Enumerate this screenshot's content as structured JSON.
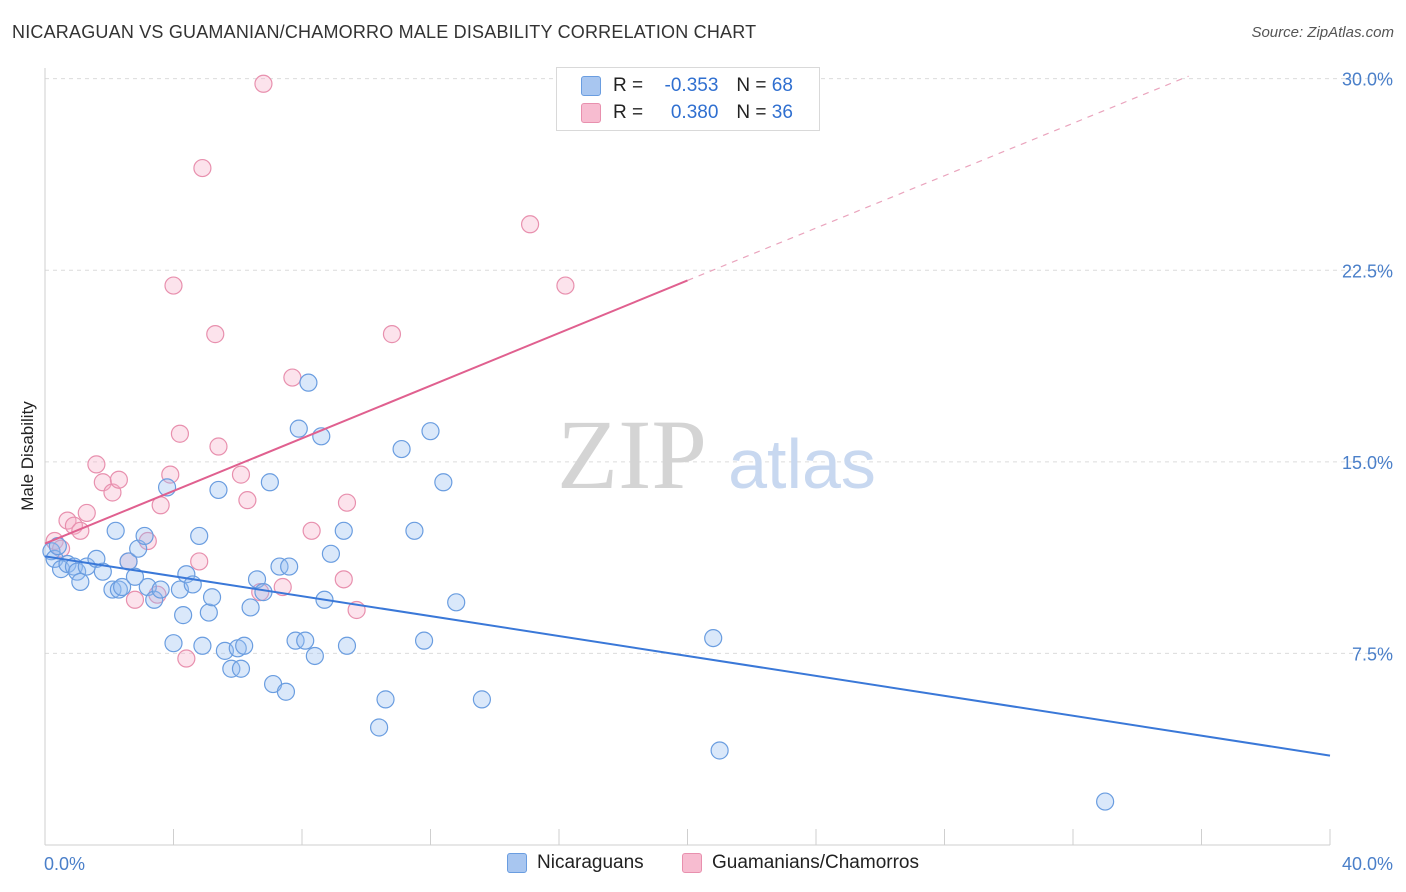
{
  "header": {
    "title": "NICARAGUAN VS GUAMANIAN/CHAMORRO MALE DISABILITY CORRELATION CHART",
    "source": "Source: ZipAtlas.com"
  },
  "watermark": {
    "zip": "ZIP",
    "atlas": "atlas"
  },
  "legend_top": {
    "rows": [
      {
        "r_label": "R =",
        "r_value": "-0.353",
        "n_label": "N =",
        "n_value": "68",
        "color": "#a8c6f0",
        "border": "#6a9de0"
      },
      {
        "r_label": "R =",
        "r_value": "0.380",
        "n_label": "N =",
        "n_value": "36",
        "color": "#f7bcd0",
        "border": "#e890ae"
      }
    ]
  },
  "legend_bottom": {
    "items": [
      {
        "label": "Nicaraguans",
        "color": "#a8c6f0",
        "border": "#6a9de0"
      },
      {
        "label": "Guamanians/Chamorros",
        "color": "#f7bcd0",
        "border": "#e890ae"
      }
    ]
  },
  "chart_data": {
    "type": "scatter",
    "title": "NICARAGUAN VS GUAMANIAN/CHAMORRO MALE DISABILITY CORRELATION CHART",
    "xlabel": "",
    "ylabel": "Male Disability",
    "xlim": [
      0,
      40
    ],
    "ylim": [
      0,
      31
    ],
    "x_tick_labels": [
      "0.0%",
      "40.0%"
    ],
    "y_ticks": [
      7.5,
      15.0,
      22.5,
      30.0
    ],
    "y_tick_labels": [
      "7.5%",
      "15.0%",
      "22.5%",
      "30.0%"
    ],
    "grid": true,
    "legend_position": "top-center",
    "colors": {
      "blue": "#3a78d8",
      "pink": "#e0608f"
    },
    "series": [
      {
        "name": "Nicaraguans",
        "marker_fill": "rgba(150,188,240,0.35)",
        "marker_stroke": "#6a9de0",
        "trend": {
          "x0": 0.0,
          "y0": 11.3,
          "x1": 40.0,
          "y1": 3.5
        },
        "points": [
          [
            0.2,
            11.5
          ],
          [
            0.3,
            11.2
          ],
          [
            0.5,
            10.8
          ],
          [
            0.7,
            11.0
          ],
          [
            0.9,
            10.9
          ],
          [
            1.0,
            10.7
          ],
          [
            1.1,
            10.3
          ],
          [
            1.3,
            10.9
          ],
          [
            1.6,
            11.2
          ],
          [
            1.8,
            10.7
          ],
          [
            2.1,
            10.0
          ],
          [
            2.2,
            12.3
          ],
          [
            2.3,
            10.0
          ],
          [
            2.4,
            10.1
          ],
          [
            2.6,
            11.1
          ],
          [
            2.8,
            10.5
          ],
          [
            2.9,
            11.6
          ],
          [
            3.1,
            12.1
          ],
          [
            3.2,
            10.1
          ],
          [
            3.4,
            9.6
          ],
          [
            3.6,
            10.0
          ],
          [
            3.8,
            14.0
          ],
          [
            4.0,
            7.9
          ],
          [
            4.2,
            10.0
          ],
          [
            4.3,
            9.0
          ],
          [
            4.4,
            10.6
          ],
          [
            4.6,
            10.2
          ],
          [
            4.8,
            12.1
          ],
          [
            4.9,
            7.8
          ],
          [
            5.1,
            9.1
          ],
          [
            5.2,
            9.7
          ],
          [
            5.4,
            13.9
          ],
          [
            5.6,
            7.6
          ],
          [
            5.8,
            6.9
          ],
          [
            6.0,
            7.7
          ],
          [
            6.1,
            6.9
          ],
          [
            6.2,
            7.8
          ],
          [
            6.4,
            9.3
          ],
          [
            6.6,
            10.4
          ],
          [
            6.8,
            9.9
          ],
          [
            7.0,
            14.2
          ],
          [
            7.1,
            6.3
          ],
          [
            7.3,
            10.9
          ],
          [
            7.5,
            6.0
          ],
          [
            7.6,
            10.9
          ],
          [
            7.8,
            8.0
          ],
          [
            7.9,
            16.3
          ],
          [
            8.1,
            8.0
          ],
          [
            8.2,
            18.1
          ],
          [
            8.4,
            7.4
          ],
          [
            8.6,
            16.0
          ],
          [
            8.7,
            9.6
          ],
          [
            8.9,
            11.4
          ],
          [
            9.3,
            12.3
          ],
          [
            9.4,
            7.8
          ],
          [
            10.4,
            4.6
          ],
          [
            10.6,
            5.7
          ],
          [
            11.1,
            15.5
          ],
          [
            11.5,
            12.3
          ],
          [
            11.8,
            8.0
          ],
          [
            12.0,
            16.2
          ],
          [
            12.4,
            14.2
          ],
          [
            12.8,
            9.5
          ],
          [
            13.6,
            5.7
          ],
          [
            20.8,
            8.1
          ],
          [
            21.0,
            3.7
          ],
          [
            33.0,
            1.7
          ],
          [
            0.4,
            11.7
          ]
        ]
      },
      {
        "name": "Guamanians/Chamorros",
        "marker_fill": "rgba(245,175,200,0.35)",
        "marker_stroke": "#e890ae",
        "trend": {
          "x0": 0.0,
          "y0": 11.8,
          "x1": 20.0,
          "y1": 22.1,
          "dash_x1": 35.6,
          "dash_y1": 30.1
        },
        "points": [
          [
            0.3,
            11.9
          ],
          [
            0.5,
            11.6
          ],
          [
            0.7,
            12.7
          ],
          [
            0.9,
            12.5
          ],
          [
            1.1,
            12.3
          ],
          [
            1.3,
            13.0
          ],
          [
            1.6,
            14.9
          ],
          [
            1.8,
            14.2
          ],
          [
            2.1,
            13.8
          ],
          [
            2.3,
            14.3
          ],
          [
            2.6,
            11.1
          ],
          [
            2.8,
            9.6
          ],
          [
            3.2,
            11.9
          ],
          [
            3.5,
            9.8
          ],
          [
            3.6,
            13.3
          ],
          [
            3.9,
            14.5
          ],
          [
            4.0,
            21.9
          ],
          [
            4.2,
            16.1
          ],
          [
            4.4,
            7.3
          ],
          [
            4.8,
            11.1
          ],
          [
            4.9,
            26.5
          ],
          [
            5.3,
            20.0
          ],
          [
            5.4,
            15.6
          ],
          [
            6.1,
            14.5
          ],
          [
            6.3,
            13.5
          ],
          [
            6.7,
            9.9
          ],
          [
            6.8,
            29.8
          ],
          [
            7.4,
            10.1
          ],
          [
            7.7,
            18.3
          ],
          [
            8.3,
            12.3
          ],
          [
            9.3,
            10.4
          ],
          [
            9.4,
            13.4
          ],
          [
            9.7,
            9.2
          ],
          [
            10.8,
            20.0
          ],
          [
            15.1,
            24.3
          ],
          [
            16.2,
            21.9
          ]
        ]
      }
    ]
  }
}
